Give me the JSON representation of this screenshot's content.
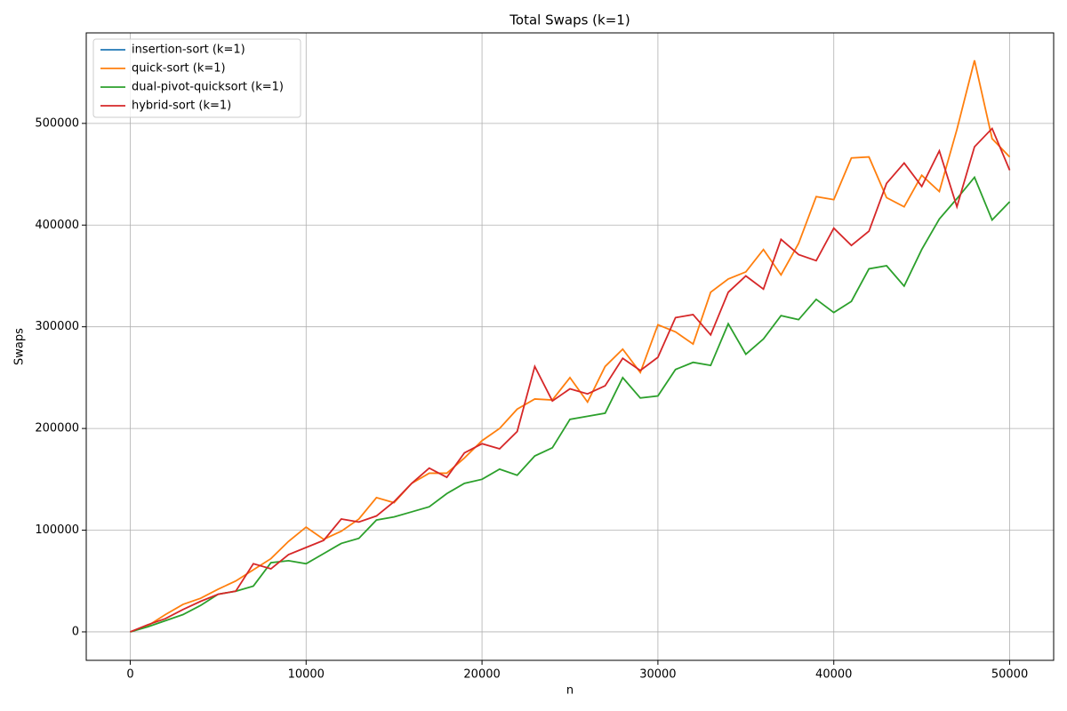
{
  "chart_data": {
    "type": "line",
    "title": "Total Swaps (k=1)",
    "x_label": "n",
    "y_label": "Swaps",
    "x": [
      0,
      1000,
      2000,
      3000,
      4000,
      5000,
      6000,
      7000,
      8000,
      9000,
      10000,
      11000,
      12000,
      13000,
      14000,
      15000,
      16000,
      17000,
      18000,
      19000,
      20000,
      21000,
      22000,
      23000,
      24000,
      25000,
      26000,
      27000,
      28000,
      29000,
      30000,
      31000,
      32000,
      33000,
      34000,
      35000,
      36000,
      37000,
      38000,
      39000,
      40000,
      41000,
      42000,
      43000,
      44000,
      45000,
      46000,
      47000,
      48000,
      49000,
      50000
    ],
    "series": [
      {
        "name": "insertion-sort (k=1)",
        "color": "#1f77b4",
        "values": [
          null,
          null,
          null,
          null,
          null,
          null,
          null,
          null,
          null,
          null,
          null,
          null,
          null,
          null,
          null,
          null,
          null,
          null,
          null,
          null,
          null,
          null,
          null,
          null,
          null,
          null,
          null,
          null,
          null,
          null,
          null,
          null,
          null,
          null,
          null,
          null,
          null,
          null,
          null,
          null,
          null,
          null,
          null,
          null,
          null,
          null,
          null,
          null,
          null,
          null,
          null
        ]
      },
      {
        "name": "quick-sort (k=1)",
        "color": "#ff7f0e",
        "values": [
          0,
          6000,
          17000,
          27000,
          33000,
          42000,
          50000,
          61000,
          72000,
          89000,
          103000,
          91000,
          99000,
          111000,
          132000,
          127000,
          146000,
          156000,
          156000,
          171000,
          188000,
          200000,
          219000,
          229000,
          228000,
          250000,
          226000,
          261000,
          278000,
          255000,
          302000,
          295000,
          283000,
          334000,
          347000,
          354000,
          376000,
          351000,
          382000,
          428000,
          425000,
          466000,
          467000,
          427000,
          418000,
          449000,
          433000,
          494000,
          562000,
          485000,
          467000
        ]
      },
      {
        "name": "dual-pivot-quicksort (k=1)",
        "color": "#2ca02c",
        "values": [
          0,
          5000,
          11000,
          17000,
          26000,
          37000,
          40000,
          45000,
          68000,
          70000,
          67000,
          77000,
          87000,
          92000,
          110000,
          113000,
          118000,
          123000,
          136000,
          146000,
          150000,
          160000,
          154000,
          173000,
          181000,
          209000,
          212000,
          215000,
          250000,
          230000,
          232000,
          258000,
          265000,
          262000,
          303000,
          273000,
          288000,
          311000,
          307000,
          327000,
          314000,
          325000,
          357000,
          360000,
          340000,
          376000,
          406000,
          426000,
          447000,
          405000,
          423000
        ]
      },
      {
        "name": "hybrid-sort (k=1)",
        "color": "#d62728",
        "values": [
          0,
          7000,
          13000,
          22000,
          30000,
          37000,
          40000,
          67000,
          62000,
          76000,
          83000,
          90000,
          111000,
          108000,
          114000,
          128000,
          146000,
          161000,
          152000,
          176000,
          185000,
          180000,
          197000,
          261000,
          227000,
          239000,
          234000,
          242000,
          269000,
          257000,
          270000,
          309000,
          312000,
          292000,
          334000,
          350000,
          337000,
          386000,
          371000,
          365000,
          397000,
          380000,
          394000,
          441000,
          461000,
          438000,
          473000,
          418000,
          477000,
          495000,
          454000
        ]
      }
    ],
    "xlim": [
      -2500,
      52500
    ],
    "ylim": [
      -28000,
      589000
    ],
    "xticks": [
      0,
      10000,
      20000,
      30000,
      40000,
      50000
    ],
    "yticks": [
      0,
      100000,
      200000,
      300000,
      400000,
      500000
    ],
    "grid": true,
    "legend": "upper left"
  }
}
